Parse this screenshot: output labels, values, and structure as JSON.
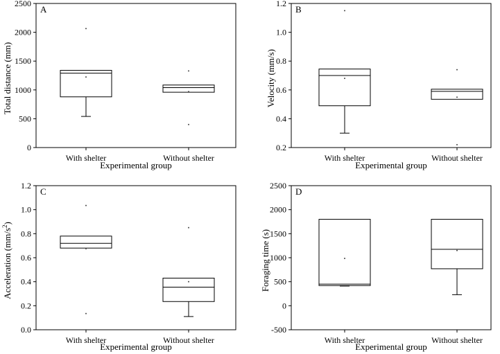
{
  "chart_data": [
    {
      "type": "box",
      "panel_label": "A",
      "xlabel": "Experimental group",
      "ylabel": "Total distance (mm)",
      "ylim": [
        0,
        2500
      ],
      "yticks": [
        0,
        500,
        1000,
        1500,
        2000,
        2500
      ],
      "ytick_labels": [
        "0",
        "500",
        "1000",
        "1500",
        "2000",
        "2500"
      ],
      "categories": [
        "With shelter",
        "Without shelter"
      ],
      "boxes": [
        {
          "q1": 880,
          "median": 1290,
          "q3": 1340,
          "whisker_low": 540,
          "whisker_high": null,
          "mean": 1225,
          "outliers": [
            2065
          ]
        },
        {
          "q1": 960,
          "median": 1040,
          "q3": 1085,
          "whisker_low": null,
          "whisker_high": null,
          "mean": 970,
          "outliers": [
            1330,
            400
          ]
        }
      ]
    },
    {
      "type": "box",
      "panel_label": "B",
      "xlabel": "Experimental group",
      "ylabel": "Velocity (mm/s)",
      "ylim": [
        0.2,
        1.2
      ],
      "yticks": [
        0.2,
        0.4,
        0.6,
        0.8,
        1.0,
        1.2
      ],
      "ytick_labels": [
        "0.2",
        "0.4",
        "0.6",
        "0.8",
        "1.0",
        "1.2"
      ],
      "categories": [
        "With shelter",
        "Without shelter"
      ],
      "boxes": [
        {
          "q1": 0.49,
          "median": 0.7,
          "q3": 0.745,
          "whisker_low": 0.3,
          "whisker_high": null,
          "mean": 0.68,
          "outliers": [
            1.15
          ]
        },
        {
          "q1": 0.535,
          "median": 0.59,
          "q3": 0.605,
          "whisker_low": null,
          "whisker_high": null,
          "mean": 0.55,
          "outliers": [
            0.74,
            0.22
          ]
        }
      ]
    },
    {
      "type": "box",
      "panel_label": "C",
      "xlabel": "Experimental group",
      "ylabel": "Acceleration (mm/s",
      "ylabel_sup": "2",
      "ylabel_end": ")",
      "ylim": [
        0.0,
        1.2
      ],
      "yticks": [
        0.0,
        0.2,
        0.4,
        0.6,
        0.8,
        1.0,
        1.2
      ],
      "ytick_labels": [
        "0.0",
        "0.2",
        "0.4",
        "0.6",
        "0.8",
        "1.0",
        "1.2"
      ],
      "categories": [
        "With shelter",
        "Without shelter"
      ],
      "boxes": [
        {
          "q1": 0.68,
          "median": 0.72,
          "q3": 0.78,
          "whisker_low": null,
          "whisker_high": null,
          "mean": 0.675,
          "outliers": [
            1.035,
            0.135
          ]
        },
        {
          "q1": 0.235,
          "median": 0.355,
          "q3": 0.43,
          "whisker_low": 0.11,
          "whisker_high": null,
          "mean": 0.4,
          "outliers": [
            0.85
          ]
        }
      ]
    },
    {
      "type": "box",
      "panel_label": "D",
      "xlabel": "Experimental group",
      "ylabel": "Foraging time (s)",
      "ylim": [
        -500,
        2500
      ],
      "yticks": [
        -500,
        0,
        500,
        1000,
        1500,
        2000,
        2500
      ],
      "ytick_labels": [
        "-500",
        "0",
        "500",
        "1000",
        "1500",
        "2000",
        "2500"
      ],
      "categories": [
        "With shelter",
        "Without shelter"
      ],
      "boxes": [
        {
          "q1": 420,
          "median": 450,
          "q3": 1800,
          "whisker_low": 410,
          "whisker_high": null,
          "mean": 985,
          "outliers": []
        },
        {
          "q1": 770,
          "median": 1175,
          "q3": 1800,
          "whisker_low": 230,
          "whisker_high": null,
          "mean": 1150,
          "outliers": []
        }
      ]
    }
  ]
}
